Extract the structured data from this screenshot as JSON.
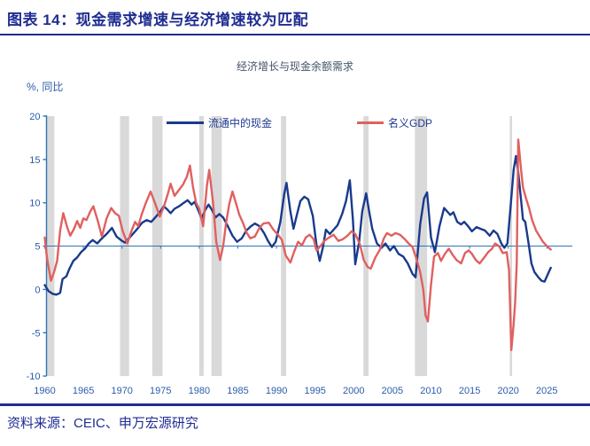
{
  "header": {
    "title": "图表 14：现金需求增速与经济增速较为匹配"
  },
  "footer": {
    "source": "资料来源：CEIC、申万宏源研究"
  },
  "colors": {
    "accent_navy": "#1f2d91",
    "cash_line": "#1a3a8c",
    "gdp_line": "#e06060",
    "axis_blue": "#2e75b6",
    "tick_label_blue": "#2b5caa",
    "recession_band": "#d9d9d9",
    "subtitle_gray": "#44546a"
  },
  "chart_data": {
    "type": "line",
    "title": "经济增长与现金余额需求",
    "unit_label": "%, 同比",
    "xlabel": "",
    "ylabel": "%",
    "ylim": [
      -10,
      20
    ],
    "xlim": [
      1959.8,
      2026.5
    ],
    "grid": false,
    "legend_position": "top-inside",
    "axis_cross_value": 5,
    "y_ticks": [
      20,
      15,
      10,
      5,
      0,
      -5,
      -10
    ],
    "x_ticks": [
      1960,
      1965,
      1970,
      1975,
      1980,
      1985,
      1990,
      1995,
      2000,
      2005,
      2010,
      2015,
      2020,
      2025
    ],
    "recession_bands": [
      [
        1960.25,
        1961.25
      ],
      [
        1969.75,
        1970.92
      ],
      [
        1973.92,
        1975.25
      ],
      [
        1980.0,
        1980.58
      ],
      [
        1981.58,
        1982.92
      ],
      [
        1990.58,
        1991.25
      ],
      [
        2001.25,
        2001.92
      ],
      [
        2007.92,
        2009.5
      ],
      [
        2020.2,
        2020.5
      ]
    ],
    "series": [
      {
        "name": "流通中的现金",
        "color": "#1a3a8c",
        "points": [
          [
            1960.0,
            0.5
          ],
          [
            1960.5,
            -0.2
          ],
          [
            1961.0,
            -0.5
          ],
          [
            1961.5,
            -0.6
          ],
          [
            1962.0,
            -0.4
          ],
          [
            1962.3,
            1.2
          ],
          [
            1962.8,
            1.5
          ],
          [
            1963.2,
            2.4
          ],
          [
            1963.7,
            3.3
          ],
          [
            1964.2,
            3.7
          ],
          [
            1964.7,
            4.3
          ],
          [
            1965.2,
            4.7
          ],
          [
            1965.7,
            5.3
          ],
          [
            1966.2,
            5.7
          ],
          [
            1966.8,
            5.3
          ],
          [
            1967.3,
            5.8
          ],
          [
            1968.0,
            6.4
          ],
          [
            1968.7,
            7.1
          ],
          [
            1969.3,
            6.1
          ],
          [
            1970.0,
            5.6
          ],
          [
            1970.4,
            5.4
          ],
          [
            1971.0,
            6.0
          ],
          [
            1971.5,
            6.5
          ],
          [
            1972.0,
            7.0
          ],
          [
            1972.6,
            7.7
          ],
          [
            1973.2,
            8.0
          ],
          [
            1973.8,
            7.8
          ],
          [
            1974.3,
            8.3
          ],
          [
            1974.9,
            8.9
          ],
          [
            1975.4,
            9.6
          ],
          [
            1975.9,
            9.2
          ],
          [
            1976.3,
            8.8
          ],
          [
            1976.8,
            9.3
          ],
          [
            1977.4,
            9.6
          ],
          [
            1978.0,
            10.0
          ],
          [
            1978.5,
            10.3
          ],
          [
            1979.0,
            9.8
          ],
          [
            1979.4,
            10.1
          ],
          [
            1979.9,
            9.1
          ],
          [
            1980.3,
            8.2
          ],
          [
            1980.8,
            9.2
          ],
          [
            1981.2,
            9.8
          ],
          [
            1981.7,
            9.1
          ],
          [
            1982.1,
            8.3
          ],
          [
            1982.6,
            8.7
          ],
          [
            1983.1,
            8.3
          ],
          [
            1983.7,
            7.3
          ],
          [
            1984.3,
            6.2
          ],
          [
            1984.9,
            5.5
          ],
          [
            1985.5,
            5.9
          ],
          [
            1986.1,
            6.8
          ],
          [
            1986.7,
            7.3
          ],
          [
            1987.2,
            7.6
          ],
          [
            1987.8,
            7.3
          ],
          [
            1988.4,
            6.5
          ],
          [
            1988.9,
            5.6
          ],
          [
            1989.4,
            4.9
          ],
          [
            1989.9,
            5.5
          ],
          [
            1990.5,
            7.8
          ],
          [
            1991.0,
            11.0
          ],
          [
            1991.3,
            12.3
          ],
          [
            1991.8,
            9.0
          ],
          [
            1992.2,
            7.0
          ],
          [
            1992.7,
            8.8
          ],
          [
            1993.1,
            10.2
          ],
          [
            1993.6,
            10.7
          ],
          [
            1994.1,
            10.4
          ],
          [
            1994.7,
            8.5
          ],
          [
            1995.2,
            5.0
          ],
          [
            1995.6,
            3.3
          ],
          [
            1996.0,
            4.8
          ],
          [
            1996.4,
            6.9
          ],
          [
            1996.9,
            6.4
          ],
          [
            1997.4,
            6.9
          ],
          [
            1997.9,
            7.4
          ],
          [
            1998.5,
            8.7
          ],
          [
            1999.0,
            10.2
          ],
          [
            1999.5,
            12.6
          ],
          [
            1999.9,
            8.0
          ],
          [
            2000.2,
            2.9
          ],
          [
            2000.7,
            5.5
          ],
          [
            2001.1,
            9.0
          ],
          [
            2001.6,
            11.1
          ],
          [
            2002.0,
            9.0
          ],
          [
            2002.4,
            7.0
          ],
          [
            2003.0,
            5.3
          ],
          [
            2003.6,
            4.8
          ],
          [
            2004.1,
            5.3
          ],
          [
            2004.7,
            4.5
          ],
          [
            2005.2,
            5.0
          ],
          [
            2005.8,
            4.1
          ],
          [
            2006.4,
            3.8
          ],
          [
            2007.0,
            3.0
          ],
          [
            2007.6,
            1.8
          ],
          [
            2008.0,
            1.4
          ],
          [
            2008.6,
            7.5
          ],
          [
            2009.1,
            10.5
          ],
          [
            2009.5,
            11.2
          ],
          [
            2010.0,
            6.0
          ],
          [
            2010.5,
            4.3
          ],
          [
            2011.1,
            7.3
          ],
          [
            2011.7,
            9.4
          ],
          [
            2012.1,
            9.0
          ],
          [
            2012.5,
            8.6
          ],
          [
            2012.9,
            8.9
          ],
          [
            2013.4,
            7.8
          ],
          [
            2013.9,
            7.5
          ],
          [
            2014.3,
            7.8
          ],
          [
            2014.8,
            7.3
          ],
          [
            2015.3,
            6.7
          ],
          [
            2015.9,
            7.2
          ],
          [
            2016.4,
            7.0
          ],
          [
            2017.0,
            6.8
          ],
          [
            2017.6,
            6.2
          ],
          [
            2018.1,
            6.8
          ],
          [
            2018.6,
            6.4
          ],
          [
            2019.1,
            5.3
          ],
          [
            2019.5,
            4.8
          ],
          [
            2019.9,
            5.3
          ],
          [
            2020.3,
            9.5
          ],
          [
            2020.7,
            13.8
          ],
          [
            2021.0,
            15.4
          ],
          [
            2021.3,
            13.5
          ],
          [
            2021.7,
            10.0
          ],
          [
            2021.9,
            8.1
          ],
          [
            2022.2,
            7.8
          ],
          [
            2022.6,
            5.5
          ],
          [
            2023.0,
            3.0
          ],
          [
            2023.4,
            2.0
          ],
          [
            2023.9,
            1.4
          ],
          [
            2024.3,
            1.0
          ],
          [
            2024.7,
            0.9
          ],
          [
            2025.1,
            1.7
          ],
          [
            2025.5,
            2.5
          ]
        ]
      },
      {
        "name": "名义GDP",
        "color": "#e06060",
        "points": [
          [
            1960.0,
            6.0
          ],
          [
            1960.3,
            3.6
          ],
          [
            1960.8,
            1.0
          ],
          [
            1961.2,
            2.0
          ],
          [
            1961.6,
            3.3
          ],
          [
            1962.0,
            6.8
          ],
          [
            1962.4,
            8.8
          ],
          [
            1962.9,
            7.2
          ],
          [
            1963.3,
            6.2
          ],
          [
            1963.8,
            7.0
          ],
          [
            1964.2,
            7.9
          ],
          [
            1964.6,
            7.1
          ],
          [
            1965.0,
            8.2
          ],
          [
            1965.4,
            8.0
          ],
          [
            1965.9,
            9.0
          ],
          [
            1966.3,
            9.6
          ],
          [
            1966.9,
            7.8
          ],
          [
            1967.4,
            6.1
          ],
          [
            1968.0,
            8.2
          ],
          [
            1968.6,
            9.4
          ],
          [
            1969.1,
            8.8
          ],
          [
            1969.6,
            8.5
          ],
          [
            1970.1,
            6.7
          ],
          [
            1970.7,
            5.3
          ],
          [
            1971.2,
            6.7
          ],
          [
            1971.7,
            7.8
          ],
          [
            1972.1,
            7.3
          ],
          [
            1972.6,
            8.8
          ],
          [
            1973.1,
            10.0
          ],
          [
            1973.7,
            11.3
          ],
          [
            1974.3,
            9.9
          ],
          [
            1974.9,
            8.4
          ],
          [
            1975.4,
            9.5
          ],
          [
            1975.9,
            10.9
          ],
          [
            1976.3,
            12.2
          ],
          [
            1976.8,
            10.8
          ],
          [
            1977.3,
            11.4
          ],
          [
            1977.9,
            12.1
          ],
          [
            1978.4,
            13.0
          ],
          [
            1978.8,
            14.3
          ],
          [
            1979.2,
            11.8
          ],
          [
            1979.6,
            10.0
          ],
          [
            1980.0,
            9.3
          ],
          [
            1980.5,
            7.3
          ],
          [
            1981.0,
            12.0
          ],
          [
            1981.3,
            13.8
          ],
          [
            1981.8,
            9.9
          ],
          [
            1982.2,
            5.5
          ],
          [
            1982.7,
            3.4
          ],
          [
            1983.1,
            5.0
          ],
          [
            1983.5,
            7.8
          ],
          [
            1983.9,
            9.9
          ],
          [
            1984.3,
            11.3
          ],
          [
            1984.8,
            9.8
          ],
          [
            1985.2,
            8.6
          ],
          [
            1985.7,
            7.6
          ],
          [
            1986.1,
            6.6
          ],
          [
            1986.6,
            5.9
          ],
          [
            1987.2,
            6.1
          ],
          [
            1987.8,
            7.1
          ],
          [
            1988.3,
            7.6
          ],
          [
            1989.0,
            7.7
          ],
          [
            1989.6,
            6.9
          ],
          [
            1990.2,
            6.3
          ],
          [
            1990.7,
            5.7
          ],
          [
            1991.2,
            3.9
          ],
          [
            1991.8,
            3.1
          ],
          [
            1992.3,
            4.4
          ],
          [
            1992.8,
            5.5
          ],
          [
            1993.3,
            5.1
          ],
          [
            1993.8,
            6.0
          ],
          [
            1994.3,
            6.3
          ],
          [
            1994.8,
            5.8
          ],
          [
            1995.2,
            4.5
          ],
          [
            1995.7,
            5.0
          ],
          [
            1996.2,
            5.6
          ],
          [
            1996.8,
            6.0
          ],
          [
            1997.4,
            6.3
          ],
          [
            1998.0,
            5.6
          ],
          [
            1998.6,
            5.8
          ],
          [
            1999.2,
            6.2
          ],
          [
            1999.7,
            6.7
          ],
          [
            2000.2,
            6.4
          ],
          [
            2000.8,
            5.2
          ],
          [
            2001.3,
            3.4
          ],
          [
            2001.8,
            2.6
          ],
          [
            2002.2,
            2.4
          ],
          [
            2002.8,
            3.7
          ],
          [
            2003.4,
            4.6
          ],
          [
            2003.9,
            5.9
          ],
          [
            2004.3,
            6.5
          ],
          [
            2004.9,
            6.2
          ],
          [
            2005.4,
            6.5
          ],
          [
            2006.0,
            6.3
          ],
          [
            2006.6,
            5.8
          ],
          [
            2007.1,
            5.3
          ],
          [
            2007.6,
            4.9
          ],
          [
            2008.1,
            3.6
          ],
          [
            2008.6,
            2.0
          ],
          [
            2009.0,
            0.0
          ],
          [
            2009.3,
            -3.0
          ],
          [
            2009.6,
            -3.7
          ],
          [
            2010.0,
            0.5
          ],
          [
            2010.4,
            3.8
          ],
          [
            2010.9,
            4.2
          ],
          [
            2011.3,
            3.3
          ],
          [
            2011.8,
            4.1
          ],
          [
            2012.3,
            4.7
          ],
          [
            2012.8,
            4.0
          ],
          [
            2013.3,
            3.4
          ],
          [
            2013.9,
            3.0
          ],
          [
            2014.4,
            4.2
          ],
          [
            2014.9,
            4.5
          ],
          [
            2015.3,
            4.1
          ],
          [
            2015.8,
            3.4
          ],
          [
            2016.3,
            3.0
          ],
          [
            2016.9,
            3.7
          ],
          [
            2017.4,
            4.3
          ],
          [
            2017.9,
            4.7
          ],
          [
            2018.3,
            5.3
          ],
          [
            2018.8,
            5.0
          ],
          [
            2019.3,
            4.2
          ],
          [
            2019.8,
            4.3
          ],
          [
            2020.1,
            2.2
          ],
          [
            2020.4,
            -7.0
          ],
          [
            2020.7,
            -4.0
          ],
          [
            2020.9,
            -1.5
          ],
          [
            2021.1,
            3.0
          ],
          [
            2021.3,
            17.3
          ],
          [
            2021.7,
            13.5
          ],
          [
            2021.9,
            11.8
          ],
          [
            2022.3,
            10.5
          ],
          [
            2022.7,
            9.4
          ],
          [
            2023.1,
            8.0
          ],
          [
            2023.6,
            6.8
          ],
          [
            2024.0,
            6.2
          ],
          [
            2024.5,
            5.5
          ],
          [
            2025.0,
            5.0
          ],
          [
            2025.5,
            4.6
          ]
        ]
      }
    ]
  }
}
